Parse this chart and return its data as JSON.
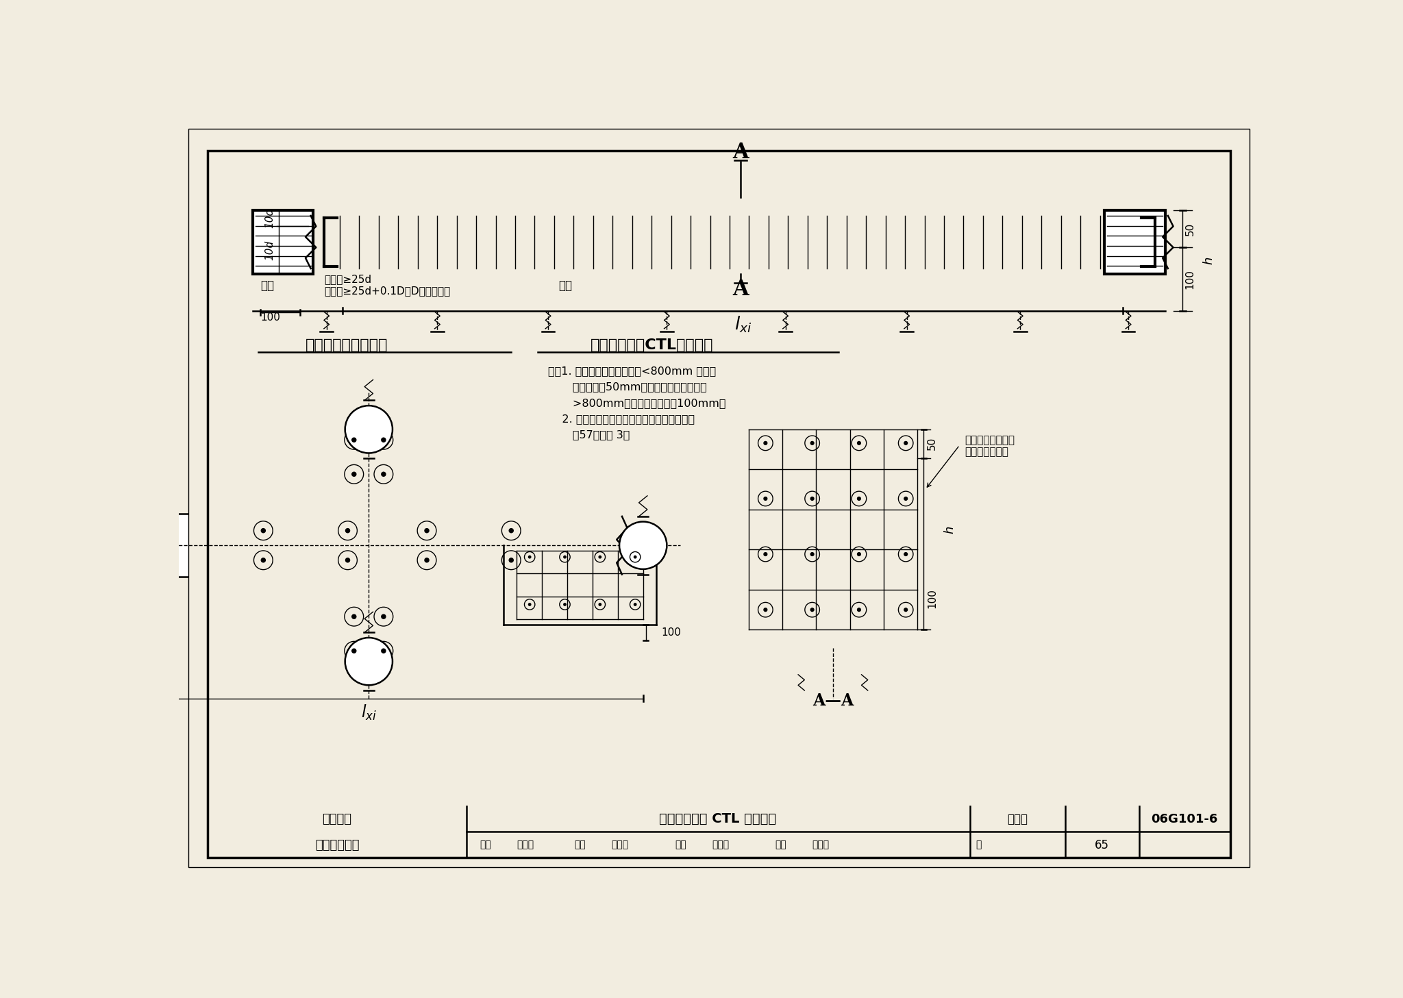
{
  "bg_color": "#f2ede0",
  "title_left": "承台梁端部钉筋构造",
  "title_right": "单排框承台梁CTL钉筋构造",
  "note1": "注：1. 当框直径或框截面边长<800mm 时，框",
  "note2": "       顶嵌入承台50mm；当框径或框截面边长",
  "note3": "       >800mm时，框顶嵌入承台100mm。",
  "note4": "    2. 承台梁拉筋的直径、间距、布置要求详见",
  "note5": "       第57页的注 3。",
  "side_note1": "侧面纵筋的配置详",
  "side_note2": "见具体工程设计",
  "label_diaLayer": "坦层",
  "label_square": "方框：≥25d",
  "label_round": "圆框：≥25d+0.1D，D为圆框直径",
  "label_diaLayer2": "坦层",
  "footer_left1": "第二部分",
  "footer_left2": "标准构造详图",
  "footer_title": "双排框承台梁 CTL 配筋构造",
  "footer_atlas": "图集号",
  "footer_atlas_val": "06G101-6",
  "footer_page": "65",
  "section_AA": "A—A"
}
